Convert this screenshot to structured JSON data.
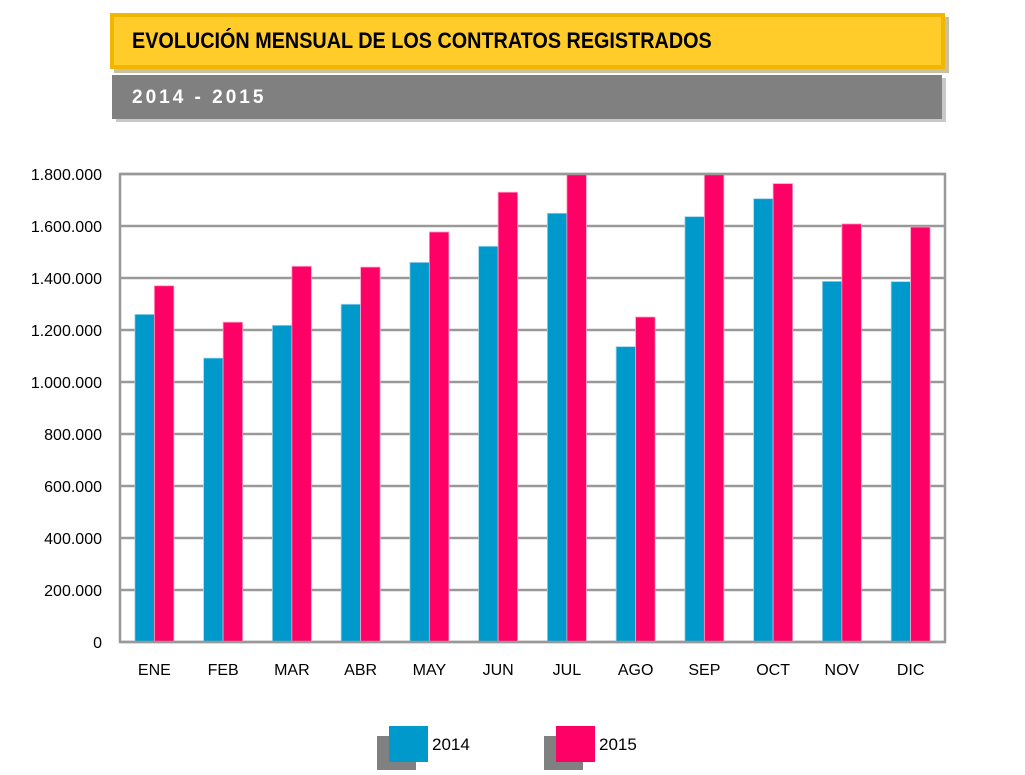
{
  "header": {
    "title": "EVOLUCIÓN MENSUAL DE LOS CONTRATOS REGISTRADOS",
    "subtitle": "2014 - 2015"
  },
  "chart_data": {
    "type": "bar",
    "title": "EVOLUCIÓN MENSUAL DE LOS CONTRATOS REGISTRADOS",
    "subtitle": "2014 - 2015",
    "categories": [
      "ENE",
      "FEB",
      "MAR",
      "ABR",
      "MAY",
      "JUN",
      "JUL",
      "AGO",
      "SEP",
      "OCT",
      "NOV",
      "DIC"
    ],
    "series": [
      {
        "name": "2014",
        "color": "#0099CC",
        "values": [
          1260000,
          1092000,
          1218000,
          1299000,
          1460000,
          1522000,
          1649000,
          1136000,
          1636000,
          1705000,
          1387000,
          1386000
        ]
      },
      {
        "name": "2015",
        "color": "#FF0066",
        "values": [
          1370000,
          1230000,
          1445000,
          1442000,
          1577000,
          1730000,
          1800000,
          1250000,
          1800000,
          1763000,
          1608000,
          1596000
        ]
      }
    ],
    "ylim": [
      0,
      1800000
    ],
    "yticks": [
      0,
      200000,
      400000,
      600000,
      800000,
      1000000,
      1200000,
      1400000,
      1600000,
      1800000
    ],
    "ytick_labels": [
      "0",
      "200.000",
      "400.000",
      "600.000",
      "800.000",
      "1.000.000",
      "1.200.000",
      "1.400.000",
      "1.600.000",
      "1.800.000"
    ],
    "xlabel": "",
    "ylabel": "",
    "grid": true,
    "legend": "bottom"
  }
}
